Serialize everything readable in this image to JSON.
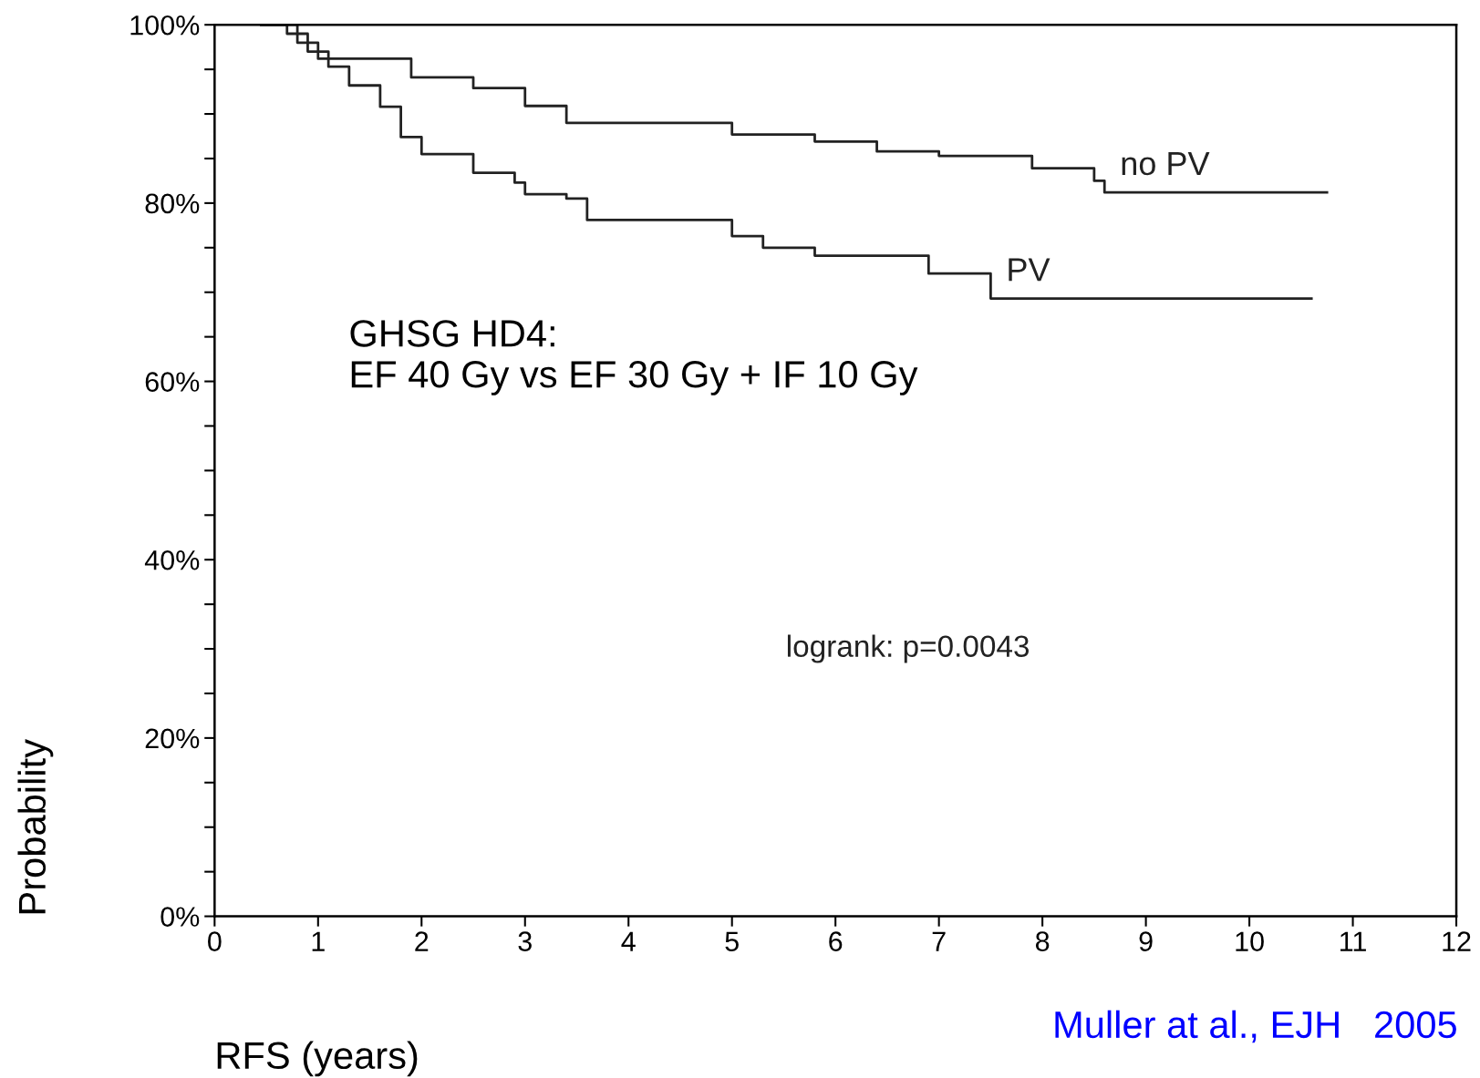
{
  "chart_data": {
    "type": "step",
    "xlabel": "RFS (years)",
    "ylabel": "Probability",
    "xlim": [
      0,
      12
    ],
    "xticks": [
      0,
      1,
      2,
      3,
      4,
      5,
      6,
      7,
      8,
      9,
      10,
      11,
      12
    ],
    "ylim": [
      0,
      100
    ],
    "yticks": [
      {
        "value": 0,
        "label": "0%"
      },
      {
        "value": 5,
        "label": null
      },
      {
        "value": 10,
        "label": null
      },
      {
        "value": 15,
        "label": null
      },
      {
        "value": 20,
        "label": "20%"
      },
      {
        "value": 25,
        "label": null
      },
      {
        "value": 30,
        "label": null
      },
      {
        "value": 35,
        "label": null
      },
      {
        "value": 40,
        "label": "40%"
      },
      {
        "value": 45,
        "label": null
      },
      {
        "value": 50,
        "label": null
      },
      {
        "value": 55,
        "label": null
      },
      {
        "value": 60,
        "label": "60%"
      },
      {
        "value": 65,
        "label": null
      },
      {
        "value": 70,
        "label": null
      },
      {
        "value": 75,
        "label": null
      },
      {
        "value": 80,
        "label": "80%"
      },
      {
        "value": 85,
        "label": null
      },
      {
        "value": 90,
        "label": null
      },
      {
        "value": 95,
        "label": null
      },
      {
        "value": 100,
        "label": "100%"
      }
    ],
    "grid": false,
    "line_style": "solid",
    "series": [
      {
        "name": "no PV",
        "color": "#222222",
        "x": [
          0.45,
          0.8,
          1.0,
          1.9,
          2.5,
          3.0,
          3.4,
          5.0,
          5.8,
          6.4,
          7.0,
          7.9,
          8.5,
          8.6,
          10.75
        ],
        "values": [
          100,
          98,
          96.2,
          94.1,
          92.9,
          90.9,
          89,
          87.7,
          86.9,
          85.8,
          85.3,
          83.9,
          82.5,
          81.2,
          81.2
        ]
      },
      {
        "name": "PV",
        "color": "#222222",
        "x": [
          0.45,
          0.7,
          0.9,
          1.1,
          1.3,
          1.6,
          1.8,
          2.0,
          2.5,
          2.9,
          3.0,
          3.4,
          3.6,
          5.0,
          5.3,
          5.8,
          6.9,
          7.5,
          10.6
        ],
        "values": [
          100,
          99,
          97,
          95.3,
          93.2,
          90.8,
          87.4,
          85.5,
          83.4,
          82.3,
          81,
          80.5,
          78.1,
          76.3,
          75,
          74.1,
          72.1,
          69.3,
          69.3
        ]
      }
    ],
    "annotations": [
      "GHSG HD4:\nEF 40 Gy vs EF 30 Gy + IF 10 Gy",
      "logrank: p=0.0043",
      "Muller at al., EJH   2005"
    ]
  }
}
